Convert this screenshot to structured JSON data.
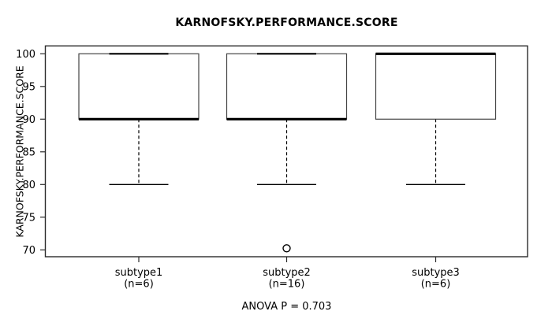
{
  "chart_data": {
    "type": "boxplot",
    "title": "KARNOFSKY.PERFORMANCE.SCORE",
    "ylabel": "KARNOFSKY.PERFORMANCE.SCORE",
    "xlabel": "",
    "footnote": "ANOVA P = 0.703",
    "y_axis": {
      "min": 70,
      "max": 100,
      "tick_step": 5,
      "ticks": [
        70,
        75,
        80,
        85,
        90,
        95,
        100
      ]
    },
    "grid": false,
    "legend": "none",
    "groups": [
      {
        "label": "subtype1",
        "sublabel": "(n=6)",
        "n": 6,
        "whisker_low": 80,
        "q1": 90,
        "median": 90,
        "q3": 100,
        "whisker_high": 100,
        "outliers": []
      },
      {
        "label": "subtype2",
        "sublabel": "(n=16)",
        "n": 16,
        "whisker_low": 80,
        "q1": 90,
        "median": 90,
        "q3": 100,
        "whisker_high": 100,
        "outliers": [
          70
        ]
      },
      {
        "label": "subtype3",
        "sublabel": "(n=6)",
        "n": 6,
        "whisker_low": 80,
        "q1": 90,
        "median": 100,
        "q3": 100,
        "whisker_high": 100,
        "outliers": []
      }
    ],
    "colors": {
      "background": "#ffffff",
      "box_stroke": "#444444",
      "median_stroke": "#000000",
      "whisker_stroke": "#000000",
      "axis_stroke": "#2a2a2a",
      "text": "#000000"
    }
  }
}
